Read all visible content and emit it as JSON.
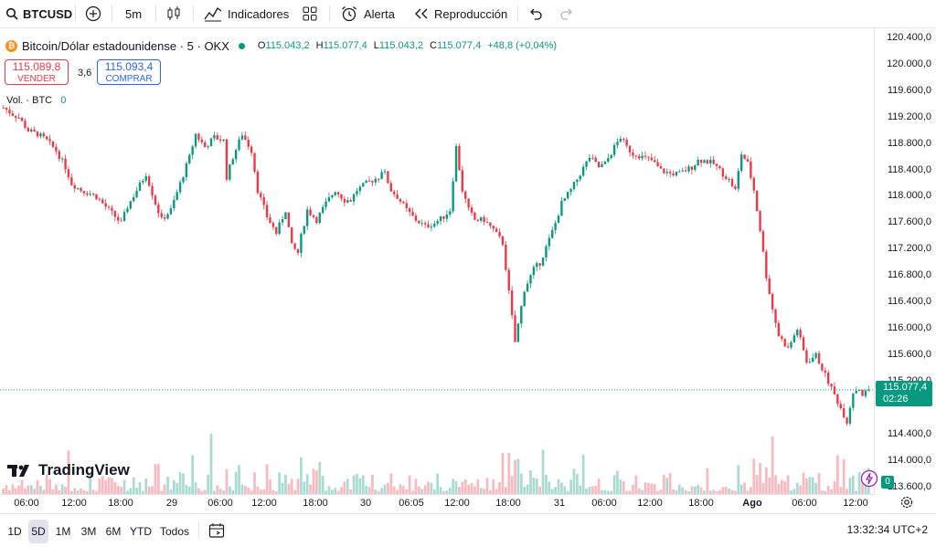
{
  "toolbar": {
    "symbol": "BTCUSD",
    "interval": "5m",
    "indicators_label": "Indicadores",
    "alert_label": "Alerta",
    "replay_label": "Reproducción"
  },
  "legend": {
    "title": "Bitcoin/Dólar estadounidense · 5 · OKX",
    "o_label": "O",
    "o": "115.043,2",
    "h_label": "H",
    "h": "115.077,4",
    "l_label": "L",
    "l": "115.043,2",
    "c_label": "C",
    "c": "115.077,4",
    "change": "+48,8 (+0,04%)",
    "sell_price": "115.089,8",
    "sell_label": "VENDER",
    "spread": "3,6",
    "buy_price": "115.093,4",
    "buy_label": "COMPRAR",
    "volume_label": "Vol. · BTC",
    "volume_value": "0"
  },
  "last_price": {
    "value": "115.077,4",
    "countdown": "02:26"
  },
  "volume_axis_label": "0",
  "watermark": "TradingView",
  "bottom": {
    "ranges": [
      "1D",
      "5D",
      "1M",
      "3M",
      "6M",
      "YTD",
      "Todos"
    ],
    "active_range": "5D",
    "clock": "13:32:34 UTC+2"
  },
  "colors": {
    "up": "#089981",
    "down": "#f23645",
    "buy": "#2962ff"
  },
  "chart_data": {
    "type": "candlestick",
    "y_tick_labels": [
      "120.400,0",
      "120.000,0",
      "119.600,0",
      "119.200,0",
      "118.800,0",
      "118.400,0",
      "118.000,0",
      "117.600,0",
      "117.200,0",
      "116.800,0",
      "116.400,0",
      "116.000,0",
      "115.600,0",
      "115.200,0",
      "114.400,0",
      "114.000,0",
      "113.600,0"
    ],
    "y_tick_values": [
      120400,
      120000,
      119600,
      119200,
      118800,
      118400,
      118000,
      117600,
      117200,
      116800,
      116400,
      116000,
      115600,
      115200,
      114400,
      114000,
      113600
    ],
    "ylim": [
      113500,
      120550
    ],
    "x_tick_labels": [
      "06:00",
      "12:00",
      "18:00",
      "29",
      "06:00",
      "12:00",
      "18:00",
      "30",
      "06:05",
      "12:00",
      "18:00",
      "31",
      "06:00",
      "12:00",
      "18:00",
      "Ago",
      "06:00",
      "12:00"
    ],
    "series": [
      {
        "name": "BTCUSD",
        "path_x": [
          0,
          3,
          5,
          8,
          11,
          14,
          17,
          20,
          22,
          25,
          28,
          30,
          33,
          36,
          38,
          40,
          43,
          46,
          49,
          51,
          54,
          57,
          60,
          62,
          65,
          68,
          71,
          72,
          74,
          77,
          80,
          82,
          85,
          88,
          91,
          93,
          95,
          96,
          98,
          101,
          104,
          107,
          110,
          112,
          114,
          117,
          119,
          121,
          122,
          123,
          125,
          127,
          130,
          133,
          136,
          139,
          142,
          144,
          146,
          148,
          150,
          152,
          155,
          158,
          161,
          165,
          168,
          171,
          173,
          176,
          178,
          180,
          183,
          186,
          189,
          192,
          194,
          197,
          199,
          201,
          203,
          204,
          206,
          209,
          212,
          215,
          218,
          220,
          222,
          224,
          226,
          229,
          231,
          234,
          236,
          238,
          240,
          242,
          244,
          246,
          248,
          250,
          253,
          256,
          259,
          262,
          265,
          268,
          272,
          274,
          276,
          277,
          279
        ],
        "path_y": [
          119350,
          119250,
          119200,
          119000,
          118950,
          118850,
          118700,
          118450,
          118200,
          118100,
          118050,
          118000,
          117850,
          117700,
          117600,
          117850,
          118100,
          118350,
          117900,
          117650,
          117800,
          118200,
          118600,
          118950,
          118750,
          118900,
          118850,
          118300,
          118600,
          118950,
          118700,
          118100,
          117700,
          117450,
          117800,
          117250,
          117150,
          117400,
          117800,
          117650,
          117900,
          118100,
          117950,
          117950,
          118100,
          118200,
          118250,
          118300,
          118400,
          118350,
          118100,
          118000,
          117800,
          117650,
          117550,
          117600,
          117700,
          117800,
          118750,
          118100,
          117800,
          117650,
          117650,
          117500,
          117300,
          115800,
          116600,
          116900,
          117000,
          117350,
          117600,
          117900,
          118100,
          118350,
          118600,
          118450,
          118500,
          118750,
          118900,
          118750,
          118650,
          118650,
          118600,
          118550,
          118400,
          118350,
          118350,
          118400,
          118450,
          118550,
          118550,
          118500,
          118400,
          118250,
          118100,
          118650,
          118500,
          118100,
          117500,
          116800,
          116300,
          115900,
          115700,
          116000,
          115500,
          115600,
          115300,
          115000,
          114600,
          115050,
          115100,
          115000,
          115077.4
        ]
      },
      {
        "name": "Vol. · BTC",
        "type": "bar",
        "values": []
      }
    ]
  }
}
